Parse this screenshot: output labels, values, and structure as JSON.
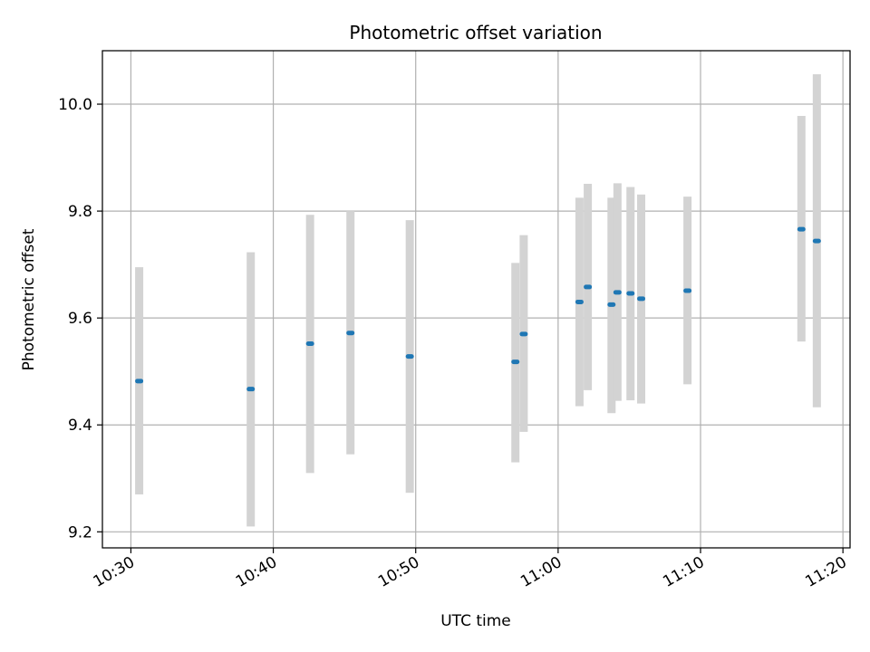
{
  "chart_data": {
    "type": "scatter",
    "title": "Photometric offset variation",
    "xlabel": "UTC time",
    "ylabel": "Photometric offset",
    "x_ticks": [
      "10:30",
      "10:40",
      "10:50",
      "11:00",
      "11:10",
      "11:20"
    ],
    "x_tick_minutes": [
      630,
      640,
      650,
      660,
      670,
      680
    ],
    "y_ticks": [
      "9.2",
      "9.4",
      "9.6",
      "9.8",
      "10.0"
    ],
    "y_tick_values": [
      9.2,
      9.4,
      9.6,
      9.8,
      10.0
    ],
    "xlim": [
      "10:28",
      "11:20:30"
    ],
    "ylim": [
      9.17,
      10.1
    ],
    "grid": true,
    "colors": {
      "marker": "#1f77b4",
      "errorbar": "#d3d3d3",
      "grid": "#b0b0b0"
    },
    "points": [
      {
        "time": "10:30:35",
        "offset": 9.482,
        "lower": 9.27,
        "upper": 9.695
      },
      {
        "time": "10:38:25",
        "offset": 9.467,
        "lower": 9.21,
        "upper": 9.723
      },
      {
        "time": "10:42:35",
        "offset": 9.552,
        "lower": 9.31,
        "upper": 9.793
      },
      {
        "time": "10:45:25",
        "offset": 9.572,
        "lower": 9.345,
        "upper": 9.8
      },
      {
        "time": "10:49:35",
        "offset": 9.528,
        "lower": 9.273,
        "upper": 9.783
      },
      {
        "time": "10:57:00",
        "offset": 9.518,
        "lower": 9.33,
        "upper": 9.703
      },
      {
        "time": "10:57:35",
        "offset": 9.57,
        "lower": 9.387,
        "upper": 9.755
      },
      {
        "time": "11:01:30",
        "offset": 9.63,
        "lower": 9.435,
        "upper": 9.825
      },
      {
        "time": "11:02:05",
        "offset": 9.658,
        "lower": 9.465,
        "upper": 9.851
      },
      {
        "time": "11:03:45",
        "offset": 9.625,
        "lower": 9.422,
        "upper": 9.825
      },
      {
        "time": "11:04:10",
        "offset": 9.648,
        "lower": 9.445,
        "upper": 9.852
      },
      {
        "time": "11:05:05",
        "offset": 9.646,
        "lower": 9.446,
        "upper": 9.845
      },
      {
        "time": "11:05:50",
        "offset": 9.636,
        "lower": 9.44,
        "upper": 9.831
      },
      {
        "time": "11:09:05",
        "offset": 9.651,
        "lower": 9.476,
        "upper": 9.827
      },
      {
        "time": "11:17:05",
        "offset": 9.766,
        "lower": 9.556,
        "upper": 9.978
      },
      {
        "time": "11:18:10",
        "offset": 9.744,
        "lower": 9.433,
        "upper": 10.056
      }
    ]
  }
}
